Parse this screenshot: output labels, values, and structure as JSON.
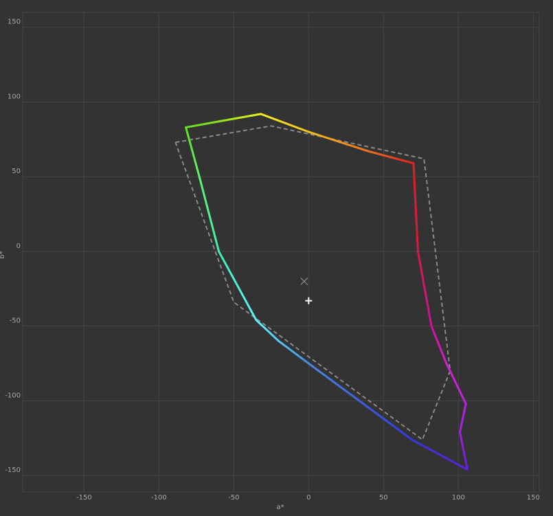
{
  "chart_data": {
    "type": "line",
    "xlabel": "a*",
    "ylabel": "b*",
    "xlim": [
      -191,
      154
    ],
    "ylim": [
      -161,
      160
    ],
    "xticks": [
      -150,
      -100,
      -50,
      0,
      50,
      100,
      150
    ],
    "yticks": [
      -150,
      -100,
      -50,
      0,
      50,
      100,
      150
    ],
    "grid": true,
    "series": [
      {
        "x": [
          70,
          73,
          82,
          92,
          105,
          101,
          106,
          69,
          0,
          -20,
          -35,
          -60,
          -73,
          -82,
          -60,
          -32,
          0,
          40,
          70
        ],
        "y": [
          59,
          0,
          -50,
          -75,
          -102,
          -121,
          -146,
          -126,
          -75,
          -60,
          -46,
          0,
          50,
          83,
          87,
          92,
          80,
          67,
          59
        ],
        "colors": [
          "#e02020",
          "#d81848",
          "#d010a0",
          "#d020d0",
          "#c020e0",
          "#a020e0",
          "#6020e0",
          "#3838e0",
          "#4a88e0",
          "#56c8f0",
          "#60f0ff",
          "#40f0b0",
          "#60f070",
          "#60e020",
          "#90e020",
          "#f0f020",
          "#f0c020",
          "#f07020",
          "#e02020"
        ]
      },
      {
        "x": [
          -89,
          -25,
          77,
          94.5,
          76,
          -50,
          -89
        ],
        "y": [
          73,
          84,
          62,
          -80,
          -126,
          -34,
          73
        ],
        "color": "#8a8a8a",
        "linestyle": "dashed"
      }
    ],
    "markers": [
      {
        "x": -3,
        "y": -20,
        "marker": "x",
        "color": "#8a8a8a"
      },
      {
        "x": 0,
        "y": -33,
        "marker": "+",
        "color": "#ffffff"
      }
    ]
  }
}
